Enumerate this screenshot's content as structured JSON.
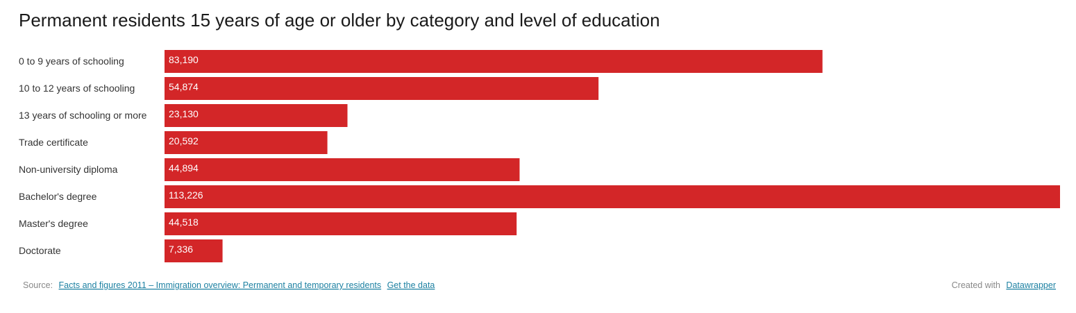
{
  "chart_data": {
    "type": "bar",
    "orientation": "horizontal",
    "title": "Permanent residents 15 years of age or older by category and level of education",
    "categories": [
      "0 to 9 years of schooling",
      "10 to 12 years of schooling",
      "13 years of schooling or more",
      "Trade certificate",
      "Non-university diploma",
      "Bachelor's degree",
      "Master's degree",
      "Doctorate"
    ],
    "values": [
      83190,
      54874,
      23130,
      20592,
      44894,
      113226,
      44518,
      7336
    ],
    "value_labels": [
      "83,190",
      "54,874",
      "23,130",
      "20,592",
      "44,894",
      "113,226",
      "44,518",
      "7,336"
    ],
    "color": "#d32628",
    "xlim": [
      0,
      113226
    ],
    "source_label": "Source:",
    "source_link": "Facts and figures 2011 – Immigration overview: Permanent and temporary residents",
    "data_link": "Get the data",
    "credit_label": "Created with",
    "credit_link": "Datawrapper"
  }
}
